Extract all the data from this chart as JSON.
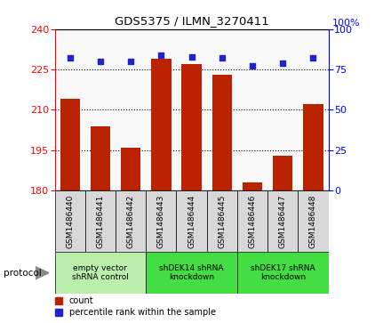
{
  "title": "GDS5375 / ILMN_3270411",
  "samples": [
    "GSM1486440",
    "GSM1486441",
    "GSM1486442",
    "GSM1486443",
    "GSM1486444",
    "GSM1486445",
    "GSM1486446",
    "GSM1486447",
    "GSM1486448"
  ],
  "counts": [
    214,
    204,
    196,
    229,
    227,
    223,
    183,
    193,
    212
  ],
  "percentiles": [
    82,
    80,
    80,
    84,
    83,
    82,
    77,
    79,
    82
  ],
  "ylim_left": [
    180,
    240
  ],
  "ylim_right": [
    0,
    100
  ],
  "yticks_left": [
    180,
    195,
    210,
    225,
    240
  ],
  "yticks_right": [
    0,
    25,
    50,
    75,
    100
  ],
  "bar_color": "#bb2200",
  "dot_color": "#2222cc",
  "groups": [
    {
      "label": "empty vector\nshRNA control",
      "start": 0,
      "end": 2,
      "color": "#bbeeaa"
    },
    {
      "label": "shDEK14 shRNA\nknockdown",
      "start": 3,
      "end": 5,
      "color": "#44dd44"
    },
    {
      "label": "shDEK17 shRNA\nknockdown",
      "start": 6,
      "end": 8,
      "color": "#44dd44"
    }
  ],
  "legend_count_label": "count",
  "legend_pct_label": "percentile rank within the sample",
  "protocol_label": "protocol",
  "background_color": "#ffffff",
  "grid_ticks": [
    195,
    210,
    225
  ],
  "right_axis_label": "100%"
}
